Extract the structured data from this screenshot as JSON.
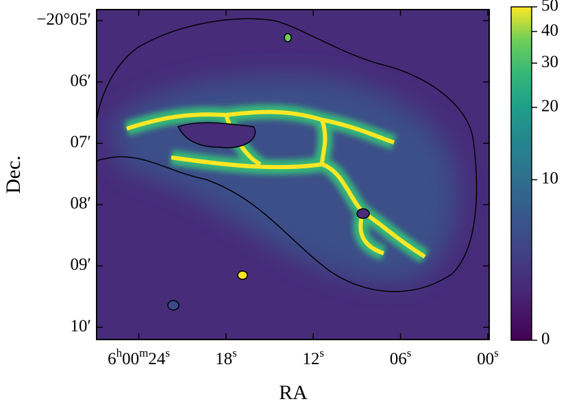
{
  "chart_data": {
    "type": "image",
    "xlabel": "RA",
    "ylabel": "Dec.",
    "xlim": [
      26.9,
      -0.1
    ],
    "xticks": [
      {
        "value": 24,
        "label": "6h00m24s"
      },
      {
        "value": 18,
        "label": "18s"
      },
      {
        "value": 12,
        "label": "12s"
      },
      {
        "value": 6,
        "label": "06s"
      },
      {
        "value": 0,
        "label": "00s"
      }
    ],
    "ylim": [
      10.2,
      4.82
    ],
    "yticks": [
      {
        "value": 5,
        "label": "−20°05′"
      },
      {
        "value": 6,
        "label": "06′"
      },
      {
        "value": 7,
        "label": "07′"
      },
      {
        "value": 8,
        "label": "08′"
      },
      {
        "value": 9,
        "label": "09′"
      },
      {
        "value": 10,
        "label": "10′"
      }
    ],
    "colorbar": {
      "lim": [
        0,
        50
      ],
      "ticks": [
        0,
        10,
        20,
        30,
        40,
        50
      ],
      "scale": "asinh",
      "linear_width": 5,
      "cmap": "viridis"
    }
  }
}
